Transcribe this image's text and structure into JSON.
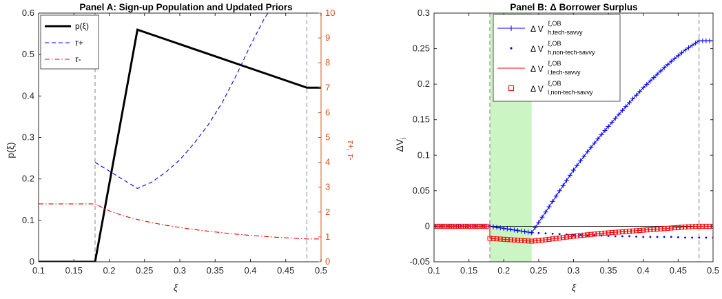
{
  "colors": {
    "black": "#000000",
    "blue": "#0000FF",
    "red": "#FF0000",
    "orange_axis": "#D95319",
    "shade_green": "#CCF5C4",
    "axis_gray": "#262626",
    "vline_gray": "#808080"
  },
  "chart_data": [
    {
      "type": "line",
      "title": "Panel A: Sign-up Population and Updated Priors",
      "xlabel": "ξ",
      "ylabel_left": "p(ξ)",
      "ylabel_right": "τ+, τ-",
      "xlim": [
        0.1,
        0.5
      ],
      "ylim_left": [
        0,
        0.6
      ],
      "ylim_right": [
        0,
        10
      ],
      "x_ticks": [
        "0.1",
        "0.15",
        "0.2",
        "0.25",
        "0.3",
        "0.35",
        "0.4",
        "0.45",
        "0.5"
      ],
      "y_ticks_left": [
        "0",
        "0.1",
        "0.2",
        "0.3",
        "0.4",
        "0.5",
        "0.6"
      ],
      "y_ticks_right": [
        "0",
        "1",
        "2",
        "3",
        "4",
        "5",
        "6",
        "7",
        "8",
        "9",
        "10"
      ],
      "vertical_lines_x": [
        0.18,
        0.48
      ],
      "legend": {
        "position": "top-left",
        "entries": [
          {
            "label": "p(ξ)",
            "style": "solid-thick",
            "color": "#000000"
          },
          {
            "label": "τ+",
            "style": "dashed",
            "color": "#0000FF"
          },
          {
            "label": "τ-",
            "style": "dash-dot",
            "color": "#FF0000"
          }
        ]
      },
      "series": [
        {
          "name": "p(ξ)",
          "axis": "left",
          "style": "solid-thick",
          "color": "#000000",
          "x": [
            0.1,
            0.18,
            0.24,
            0.48,
            0.5
          ],
          "y": [
            0,
            0,
            0.56,
            0.42,
            0.42
          ]
        },
        {
          "name": "τ+",
          "axis": "right",
          "style": "dashed",
          "color": "#0000FF",
          "x": [
            0.18,
            0.24,
            0.26,
            0.28,
            0.3,
            0.32,
            0.34,
            0.36,
            0.38,
            0.4,
            0.42,
            0.44
          ],
          "y": [
            4.0,
            2.95,
            3.2,
            3.6,
            4.1,
            4.75,
            5.5,
            6.4,
            7.5,
            8.7,
            9.8,
            10.6
          ]
        },
        {
          "name": "τ-",
          "axis": "right",
          "style": "dash-dot",
          "color": "#FF0000",
          "x": [
            0.1,
            0.18,
            0.2,
            0.22,
            0.24,
            0.26,
            0.28,
            0.3,
            0.32,
            0.34,
            0.36,
            0.38,
            0.4,
            0.42,
            0.44,
            0.46,
            0.48,
            0.5
          ],
          "y": [
            2.33,
            2.33,
            2.05,
            1.85,
            1.7,
            1.58,
            1.47,
            1.38,
            1.3,
            1.23,
            1.17,
            1.11,
            1.06,
            1.02,
            0.98,
            0.95,
            0.92,
            0.92
          ]
        }
      ]
    },
    {
      "type": "line",
      "title": "Panel B: Δ Borrower Surplus",
      "xlabel": "ξ",
      "ylabel": "ΔV",
      "ylabel_sub": "i",
      "xlim": [
        0.1,
        0.5
      ],
      "ylim": [
        -0.05,
        0.3
      ],
      "x_ticks": [
        "0.1",
        "0.15",
        "0.2",
        "0.25",
        "0.3",
        "0.35",
        "0.4",
        "0.45",
        "0.5"
      ],
      "y_ticks": [
        "-0.05",
        "0",
        "0.05",
        "0.1",
        "0.15",
        "0.2",
        "0.25",
        "0.3"
      ],
      "vertical_lines_x": [
        0.18,
        0.48
      ],
      "shaded_x_range": [
        0.18,
        0.24
      ],
      "zero_line": true,
      "legend": {
        "position": "top-left",
        "entries": [
          {
            "label": "Δ V",
            "sup": "ξ,OB",
            "sub": "h,tech-savvy",
            "marker": "plus-line",
            "color": "#0000FF"
          },
          {
            "label": "Δ V",
            "sup": "ξ,OB",
            "sub": "h,non-tech-savvy",
            "marker": "dot",
            "color": "#0000FF"
          },
          {
            "label": "Δ V",
            "sup": "ξ,OB",
            "sub": "l,tech-savvy",
            "marker": "line",
            "color": "#FF0000"
          },
          {
            "label": "Δ V",
            "sup": "ξ,OB",
            "sub": "l,non-tech-savvy",
            "marker": "square",
            "color": "#FF0000"
          }
        ]
      },
      "series": [
        {
          "name": "Δ V h,tech-savvy",
          "marker": "plus-line",
          "color": "#0000FF",
          "x": [
            0.1,
            0.18,
            0.24,
            0.26,
            0.28,
            0.3,
            0.32,
            0.34,
            0.36,
            0.38,
            0.4,
            0.42,
            0.44,
            0.46,
            0.48,
            0.5
          ],
          "y": [
            0,
            0,
            -0.009,
            0.02,
            0.05,
            0.079,
            0.105,
            0.129,
            0.152,
            0.174,
            0.195,
            0.214,
            0.232,
            0.248,
            0.261,
            0.261
          ]
        },
        {
          "name": "Δ V h,non-tech-savvy",
          "marker": "dot",
          "color": "#0000FF",
          "x": [
            0.1,
            0.18,
            0.24,
            0.26,
            0.28,
            0.3,
            0.32,
            0.34,
            0.36,
            0.38,
            0.4,
            0.42,
            0.44,
            0.46,
            0.48,
            0.5
          ],
          "y": [
            0,
            0,
            -0.009,
            -0.01,
            -0.011,
            -0.012,
            -0.013,
            -0.013,
            -0.014,
            -0.014,
            -0.015,
            -0.015,
            -0.015,
            -0.016,
            -0.016,
            -0.016
          ]
        },
        {
          "name": "Δ V l,tech-savvy",
          "marker": "line",
          "color": "#FF0000",
          "x": [
            0.1,
            0.18,
            0.18,
            0.24,
            0.26,
            0.3,
            0.34,
            0.38,
            0.42,
            0.46,
            0.48,
            0.5
          ],
          "y": [
            0,
            0,
            -0.017,
            -0.021,
            -0.019,
            -0.014,
            -0.01,
            -0.007,
            -0.004,
            -0.001,
            0,
            0
          ]
        },
        {
          "name": "Δ V l,non-tech-savvy",
          "marker": "square",
          "color": "#FF0000",
          "x": [
            0.1,
            0.18,
            0.18,
            0.24,
            0.26,
            0.3,
            0.34,
            0.38,
            0.42,
            0.46,
            0.48,
            0.5
          ],
          "y": [
            0,
            0,
            -0.017,
            -0.021,
            -0.019,
            -0.014,
            -0.01,
            -0.007,
            -0.004,
            -0.001,
            0,
            0
          ]
        }
      ]
    }
  ]
}
